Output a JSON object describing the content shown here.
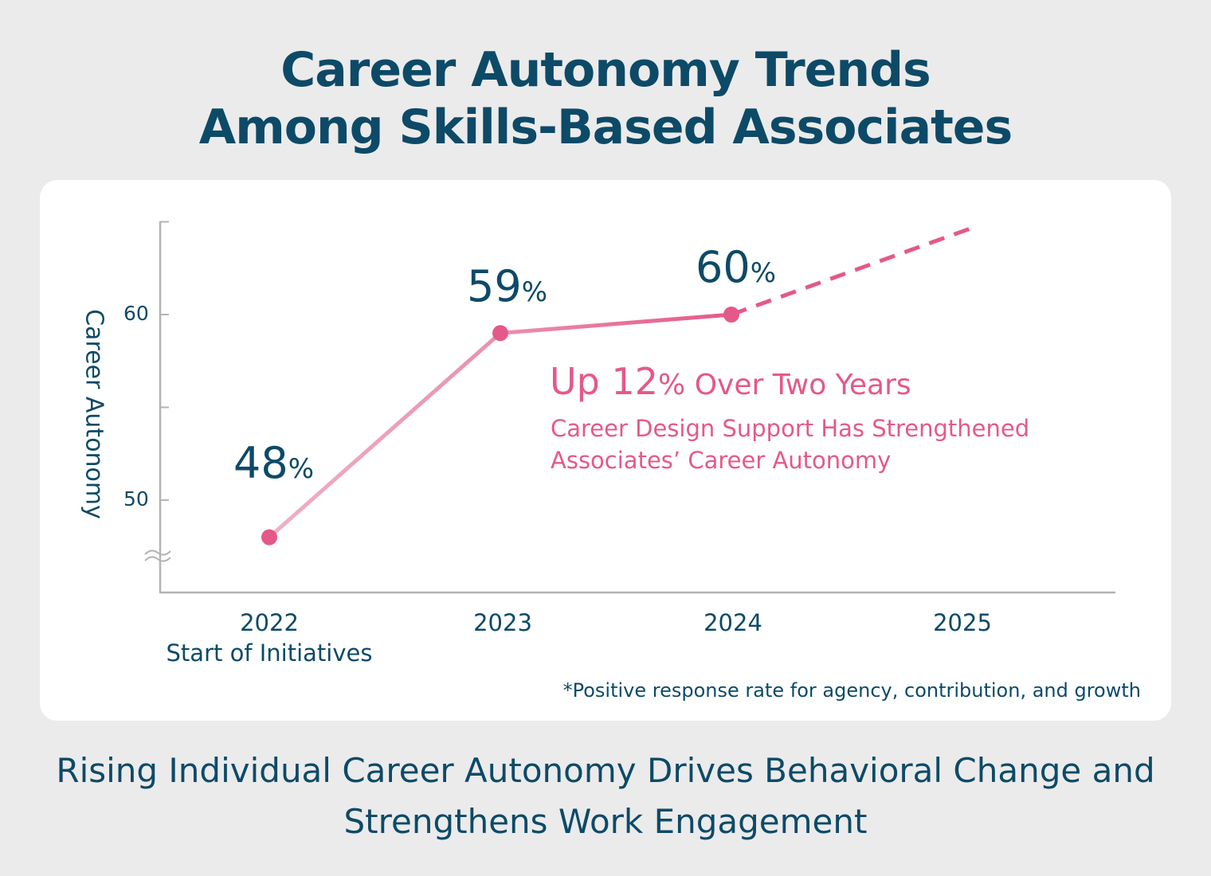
{
  "title_line1": "Career Autonomy Trends",
  "title_line2": "Among Skills-Based Associates",
  "chart_data": {
    "type": "line",
    "ylabel": "Career Autonomy",
    "yticks": [
      50,
      60
    ],
    "ylim": [
      45,
      65
    ],
    "axis_break": true,
    "categories": [
      "2022",
      "2023",
      "2024",
      "2025"
    ],
    "category_sublabels": [
      "Start of Initiatives",
      "",
      "",
      ""
    ],
    "series": [
      {
        "x": [
          2022,
          2023,
          2024
        ],
        "values": [
          48,
          59,
          60
        ],
        "data_labels": [
          "48",
          "59",
          "60"
        ],
        "unit": "%",
        "style": "solid"
      }
    ],
    "projection": {
      "x": [
        2024,
        2025
      ],
      "values": [
        60,
        64.7
      ],
      "style": "dashed"
    },
    "annotation": {
      "headline_prefix": "Up ",
      "headline_number": "12",
      "headline_unit": "%",
      "headline_suffix": " Over Two Years",
      "body_line1": "Career Design Support Has Strengthened",
      "body_line2": "Associates’ Career Autonomy"
    },
    "footnote": "*Positive response rate for agency, contribution, and growth",
    "colors": {
      "text": "#0d4a67",
      "line": "#e5588a",
      "line_light": "#efb0c6",
      "axis": "#b3b3b3"
    }
  },
  "subtitle_line1": "Rising Individual Career Autonomy Drives Behavioral Change and",
  "subtitle_line2": "Strengthens Work Engagement"
}
